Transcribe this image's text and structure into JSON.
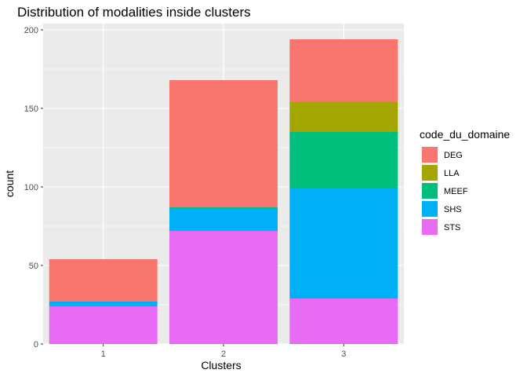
{
  "chart_data": {
    "type": "bar",
    "stacked": true,
    "title": "Distribution of modalities inside clusters",
    "xlabel": "Clusters",
    "ylabel": "count",
    "categories": [
      "1",
      "2",
      "3"
    ],
    "ylim": [
      0,
      204
    ],
    "yticks": [
      0,
      50,
      100,
      150,
      200
    ],
    "grid": true,
    "legend_title": "code_du_domaine",
    "legend_position": "right",
    "series": [
      {
        "name": "DEG",
        "color": "#F8766D",
        "values": [
          27,
          81,
          40
        ]
      },
      {
        "name": "LLA",
        "color": "#A3A500",
        "values": [
          0,
          0,
          19
        ]
      },
      {
        "name": "MEEF",
        "color": "#00BF7D",
        "values": [
          0,
          1,
          36
        ]
      },
      {
        "name": "SHS",
        "color": "#00B0F6",
        "values": [
          3,
          14,
          70
        ]
      },
      {
        "name": "STS",
        "color": "#E76BF3",
        "values": [
          24,
          72,
          29
        ]
      }
    ],
    "panel_background": "#EBEBEB",
    "grid_color": "#FFFFFF"
  }
}
